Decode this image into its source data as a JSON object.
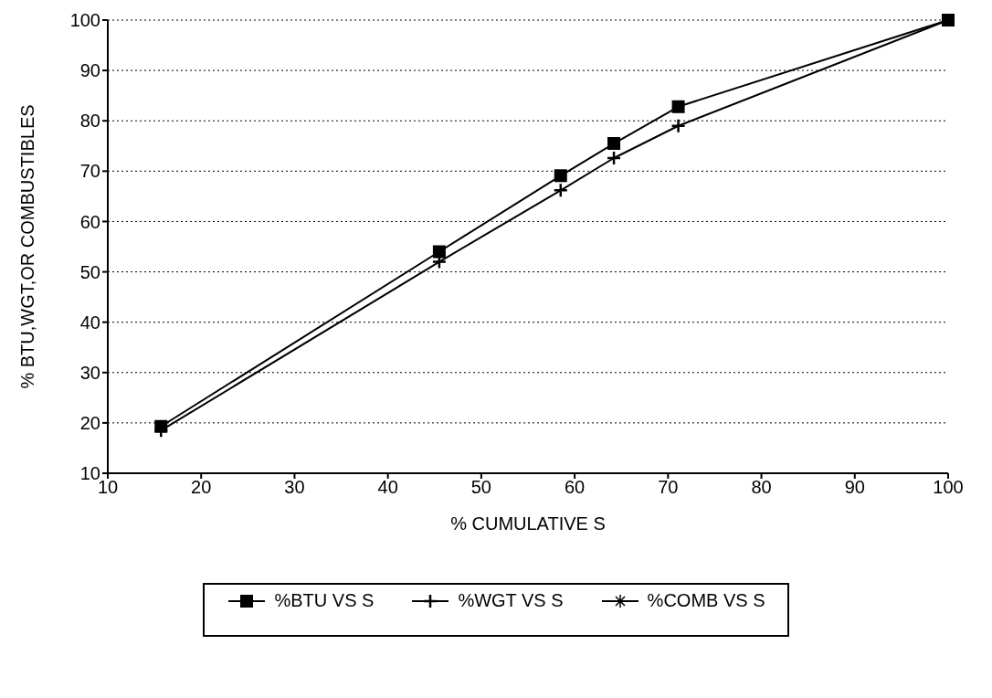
{
  "chart_data": {
    "type": "line",
    "xlabel": "% CUMULATIVE S",
    "ylabel": "% BTU,WGT,OR COMBUSTIBLES",
    "x": [
      15.7,
      45.5,
      58.5,
      64.2,
      71.1,
      100
    ],
    "series": [
      {
        "name": "%BTU VS S",
        "color": "#000000",
        "marker": "square",
        "values": [
          19.3,
          54,
          69.1,
          75.5,
          82.8,
          100
        ]
      },
      {
        "name": "%WGT VS S",
        "color": "#000000",
        "marker": "cross",
        "values": [
          18.5,
          52,
          66.2,
          72.6,
          79,
          100
        ]
      },
      {
        "name": "%COMB VS S",
        "color": "#000000",
        "marker": "star",
        "values": [
          null,
          null,
          null,
          null,
          null,
          null
        ]
      }
    ],
    "xlim": [
      10,
      100
    ],
    "xticks": [
      10,
      20,
      30,
      40,
      50,
      60,
      70,
      80,
      90,
      100
    ],
    "ylim": [
      10,
      100
    ],
    "yticks": [
      10,
      20,
      30,
      40,
      50,
      60,
      70,
      80,
      90,
      100
    ],
    "grid": "y",
    "legend": "bottom",
    "line_style": "solid"
  }
}
